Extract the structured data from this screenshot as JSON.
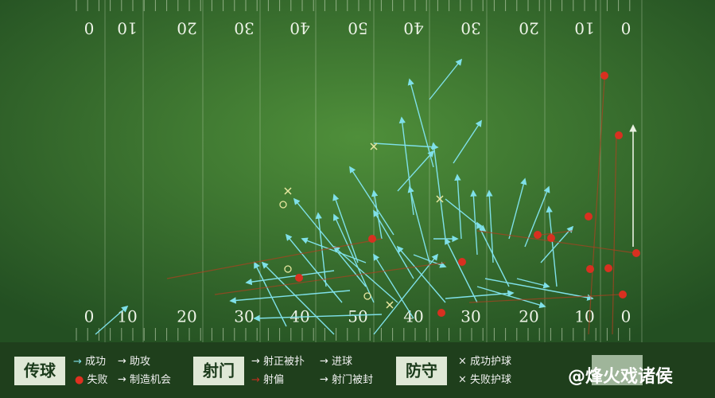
{
  "field": {
    "top_numbers": [
      "0",
      "10",
      "20",
      "30",
      "40",
      "50",
      "40",
      "30",
      "20",
      "10",
      "0"
    ],
    "bottom_numbers": [
      "0",
      "10",
      "20",
      "30",
      "40",
      "50",
      "40",
      "30",
      "20",
      "10",
      "0"
    ]
  },
  "legend": {
    "pass": {
      "title": "传球",
      "success": "成功",
      "assist": "助攻",
      "fail": "失败",
      "chance": "制造机会"
    },
    "shot": {
      "title": "射门",
      "saved": "射正被扑",
      "goal": "进球",
      "miss": "射偏",
      "blocked": "射门被封"
    },
    "defense": {
      "title": "防守",
      "success": "成功护球",
      "fail": "失败护球"
    }
  },
  "watermark": "@烽火戏诸侯"
}
